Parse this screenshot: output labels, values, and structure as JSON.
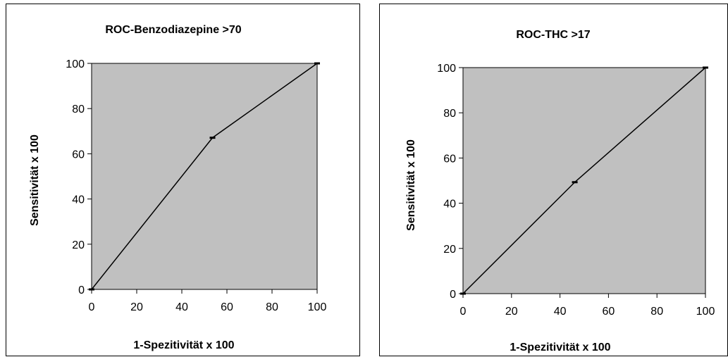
{
  "chart_data": [
    {
      "type": "line",
      "title": "ROC-Benzodiazepine >70",
      "xlabel": "1-Spezitivität x 100",
      "ylabel": "Sensitivität x 100",
      "xlim": [
        0,
        100
      ],
      "ylim": [
        0,
        100
      ],
      "xticks": [
        0,
        20,
        40,
        60,
        80,
        100
      ],
      "yticks": [
        0,
        20,
        40,
        60,
        80,
        100
      ],
      "grid": false,
      "plot_background": "#c0c0c0",
      "series": [
        {
          "x": [
            0,
            53.6,
            100
          ],
          "y": [
            0,
            67.1,
            100
          ],
          "color": "#000000"
        }
      ]
    },
    {
      "type": "line",
      "title": "ROC-THC >17",
      "xlabel": "1-Spezitivität x 100",
      "ylabel": "Sensitivität x 100",
      "xlim": [
        0,
        100
      ],
      "ylim": [
        0,
        100
      ],
      "xticks": [
        0,
        20,
        40,
        60,
        80,
        100
      ],
      "yticks": [
        0,
        20,
        40,
        60,
        80,
        100
      ],
      "grid": false,
      "plot_background": "#c0c0c0",
      "series": [
        {
          "x": [
            0,
            46.1,
            100
          ],
          "y": [
            0,
            49.3,
            100
          ],
          "color": "#000000"
        }
      ]
    }
  ]
}
